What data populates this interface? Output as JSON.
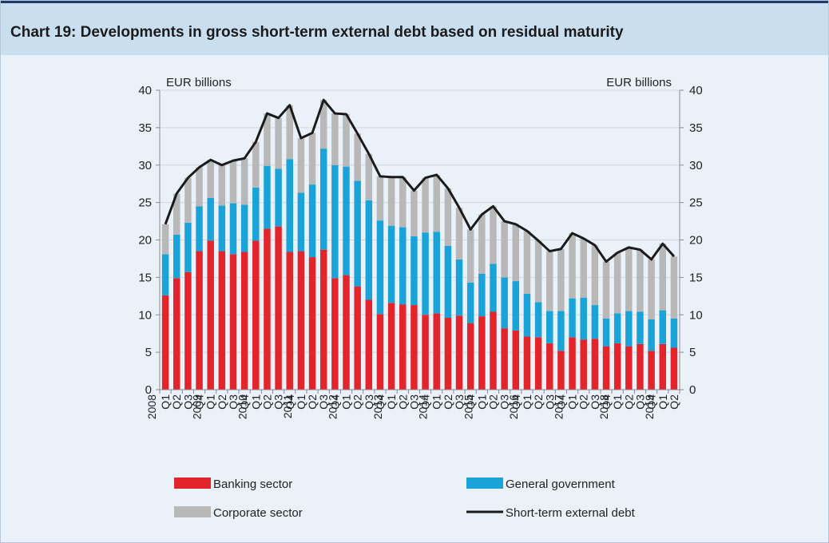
{
  "title": "Chart 19: Developments in gross short-term external debt based on residual maturity",
  "colors": {
    "banking": "#e3252b",
    "government": "#1aa3d9",
    "corporate": "#b8b8b8",
    "debt_line": "#1b1b1b"
  },
  "chart_data": {
    "type": "bar",
    "stacked": true,
    "y_unit_left": "EUR billions",
    "y_unit_right": "EUR billions",
    "ylim": [
      0,
      40
    ],
    "yticks": [
      0,
      5,
      10,
      15,
      20,
      25,
      30,
      35,
      40
    ],
    "years": [
      "2008",
      "2009",
      "2010",
      "2011",
      "2012",
      "2013",
      "2014",
      "2015",
      "2016",
      "2017",
      "2018",
      "2019"
    ],
    "quarters_per_year": [
      "Q1",
      "Q2",
      "Q3",
      "Q4"
    ],
    "last_year_quarters": [
      "Q1",
      "Q2"
    ],
    "series": [
      {
        "name": "Banking sector",
        "kind": "bar",
        "values": [
          12.6,
          14.9,
          15.7,
          18.5,
          19.9,
          18.5,
          18.1,
          18.4,
          19.9,
          21.5,
          21.8,
          18.4,
          18.5,
          17.7,
          18.7,
          14.9,
          15.3,
          13.8,
          12.0,
          10.1,
          11.6,
          11.4,
          11.3,
          10.0,
          10.2,
          9.6,
          9.9,
          8.9,
          9.8,
          10.4,
          8.2,
          7.9,
          7.1,
          7.0,
          6.2,
          5.2,
          7.0,
          6.7,
          6.8,
          5.8,
          6.2,
          5.8,
          6.1,
          5.2,
          6.1,
          5.6
        ]
      },
      {
        "name": "General government",
        "kind": "bar",
        "values": [
          5.5,
          5.8,
          6.6,
          6.0,
          5.7,
          6.1,
          6.8,
          6.3,
          7.1,
          8.4,
          7.7,
          12.4,
          7.8,
          9.7,
          13.5,
          15.1,
          14.5,
          14.1,
          13.3,
          12.5,
          10.3,
          10.3,
          9.2,
          11.0,
          10.9,
          9.6,
          7.5,
          5.4,
          5.7,
          6.4,
          6.8,
          6.6,
          5.7,
          4.7,
          4.3,
          5.3,
          5.2,
          5.6,
          4.5,
          3.7,
          4.0,
          4.7,
          4.3,
          4.2,
          4.5,
          3.9
        ]
      },
      {
        "name": "Corporate sector",
        "kind": "bar",
        "values": [
          4.0,
          5.5,
          6.0,
          5.2,
          5.1,
          5.4,
          5.7,
          6.2,
          6.1,
          7.0,
          6.8,
          7.2,
          7.3,
          6.9,
          6.5,
          6.9,
          7.0,
          6.3,
          6.2,
          5.9,
          6.5,
          6.7,
          6.1,
          7.3,
          7.6,
          7.7,
          6.9,
          7.1,
          7.9,
          7.7,
          7.5,
          7.6,
          8.4,
          8.2,
          8.0,
          8.3,
          8.7,
          7.9,
          8.0,
          7.6,
          8.1,
          8.5,
          8.3,
          8.0,
          8.9,
          8.3
        ]
      },
      {
        "name": "Short-term external debt",
        "kind": "line",
        "values": [
          22.1,
          26.2,
          28.3,
          29.7,
          30.7,
          30.0,
          30.6,
          30.9,
          33.1,
          36.9,
          36.3,
          38.0,
          33.6,
          34.3,
          38.7,
          36.9,
          36.8,
          34.2,
          31.5,
          28.5,
          28.4,
          28.4,
          26.6,
          28.3,
          28.7,
          26.9,
          24.3,
          21.4,
          23.4,
          24.5,
          22.5,
          22.1,
          21.2,
          19.9,
          18.5,
          18.8,
          20.9,
          20.2,
          19.3,
          17.1,
          18.3,
          19.0,
          18.7,
          17.4,
          19.5,
          17.8
        ]
      }
    ],
    "legend_position": "bottom"
  }
}
